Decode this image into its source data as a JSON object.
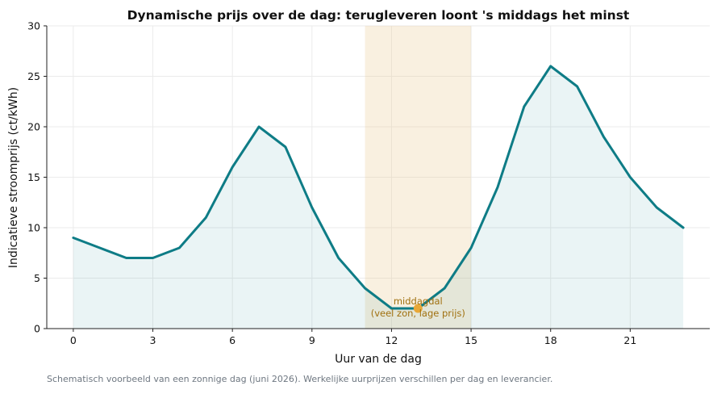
{
  "chart_data": {
    "type": "line",
    "title": "Dynamische prijs over de dag: terugleveren loont 's middags het minst",
    "xlabel": "Uur van de dag",
    "ylabel": "Indicatieve stroomprijs (ct/kWh)",
    "xlim": [
      -1,
      24
    ],
    "ylim": [
      0,
      30
    ],
    "x_ticks": [
      0,
      3,
      6,
      9,
      12,
      15,
      18,
      21
    ],
    "y_ticks": [
      0,
      5,
      10,
      15,
      20,
      25,
      30
    ],
    "grid": true,
    "series": [
      {
        "x": [
          0,
          1,
          2,
          3,
          4,
          5,
          6,
          7,
          8,
          9,
          10,
          11,
          12,
          13,
          14,
          15,
          16,
          17,
          18,
          19,
          20,
          21,
          22,
          23
        ],
        "values": [
          9,
          8,
          7,
          7,
          8,
          11,
          16,
          20,
          18,
          12,
          7,
          4,
          2,
          2,
          4,
          8,
          14,
          22,
          26,
          24,
          19,
          15,
          12,
          10
        ],
        "color": "#0e7c86",
        "fill_color": "#0e7c86"
      }
    ],
    "highlight_band": {
      "x_start": 11,
      "x_end": 15,
      "color": "#e8c98f"
    },
    "annotation": {
      "x": 13,
      "y": 2,
      "label_line1": "middagdal",
      "label_line2": "(veel zon, lage prijs)",
      "color": "#a0700f",
      "marker_color": "#e8a838"
    }
  },
  "footnote": "Schematisch voorbeeld van een zonnige dag (juni 2026). Werkelijke uurprijzen verschillen per dag en leverancier."
}
